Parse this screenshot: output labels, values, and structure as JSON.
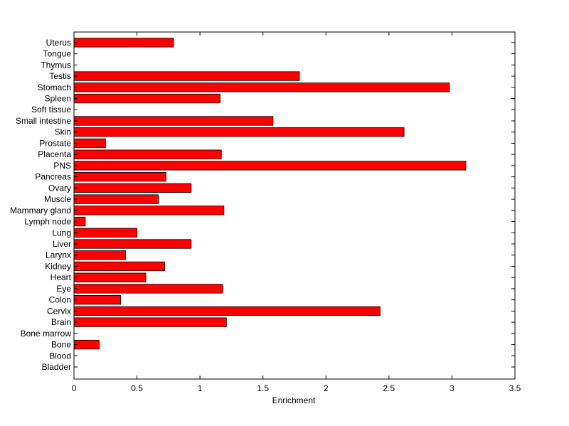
{
  "chart_data": {
    "type": "bar",
    "orientation": "horizontal",
    "title": "",
    "xlabel": "Enrichment",
    "ylabel": "",
    "xlim": [
      0,
      3.5
    ],
    "xticks": [
      "0",
      "0.5",
      "1",
      "1.5",
      "2",
      "2.5",
      "3",
      "3.5"
    ],
    "categories": [
      "Uterus",
      "Tongue",
      "Thymus",
      "Testis",
      "Stomach",
      "Spleen",
      "Soft tissue",
      "Small intestine",
      "Skin",
      "Prostate",
      "Placenta",
      "PNS",
      "Pancreas",
      "Ovary",
      "Muscle",
      "Mammary gland",
      "Lymph node",
      "Lung",
      "Liver",
      "Larynx",
      "Kidney",
      "Heart",
      "Eye",
      "Colon",
      "Cervix",
      "Brain",
      "Bone marrow",
      "Bone",
      "Blood",
      "Bladder"
    ],
    "values": [
      0.79,
      0,
      0,
      1.79,
      2.98,
      1.16,
      0,
      1.58,
      2.62,
      0.25,
      1.17,
      3.11,
      0.73,
      0.93,
      0.67,
      1.19,
      0.09,
      0.5,
      0.93,
      0.41,
      0.72,
      0.57,
      1.18,
      0.37,
      2.43,
      1.21,
      0,
      0.2,
      0,
      0
    ],
    "bar_color": "#ff0000",
    "edge_color": "#000000",
    "grid": false,
    "legend": "none"
  }
}
